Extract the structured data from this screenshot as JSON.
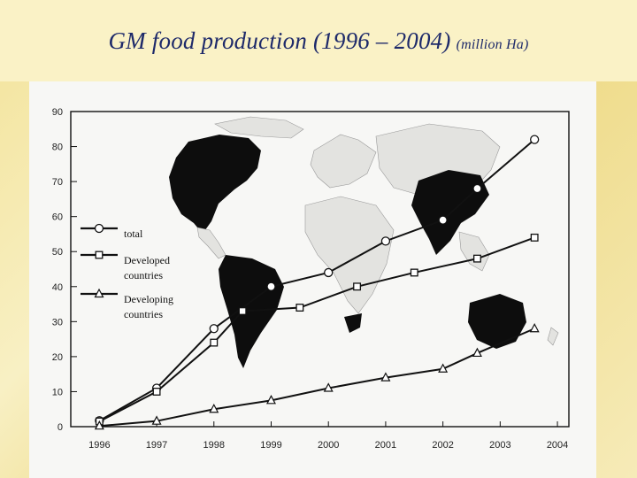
{
  "slide": {
    "title": "GM food production (1996 – 2004)",
    "unit": "(million Ha)"
  },
  "chart_data": {
    "type": "line",
    "x": [
      1996,
      1997,
      1998,
      1999,
      2000,
      2001,
      2002,
      2003,
      2004
    ],
    "x_tick_labels": [
      "1996",
      "1997",
      "1998",
      "1999",
      "2000",
      "2001",
      "2002",
      "2003",
      "2004"
    ],
    "y_tick_labels": [
      "0",
      "10",
      "20",
      "30",
      "40",
      "50",
      "60",
      "70",
      "80",
      "90"
    ],
    "ylim": [
      0,
      90
    ],
    "series": [
      {
        "name": "total",
        "marker": "circle",
        "points": [
          [
            1996.0,
            1.7
          ],
          [
            1997.0,
            11
          ],
          [
            1998.0,
            28
          ],
          [
            1999.0,
            40
          ],
          [
            2000.0,
            44
          ],
          [
            2001.0,
            53
          ],
          [
            2002.0,
            59
          ],
          [
            2002.6,
            68
          ],
          [
            2003.6,
            82
          ]
        ]
      },
      {
        "name": "Developed countries",
        "marker": "square",
        "points": [
          [
            1996.0,
            1.5
          ],
          [
            1997.0,
            10
          ],
          [
            1998.0,
            24
          ],
          [
            1998.5,
            33
          ],
          [
            1999.5,
            34
          ],
          [
            2000.5,
            40
          ],
          [
            2001.5,
            44
          ],
          [
            2002.6,
            48
          ],
          [
            2003.6,
            54
          ]
        ]
      },
      {
        "name": "Developing countries",
        "marker": "triangle",
        "points": [
          [
            1996.0,
            0.2
          ],
          [
            1997.0,
            1.6
          ],
          [
            1998.0,
            5
          ],
          [
            1999.0,
            7.5
          ],
          [
            2000.0,
            11
          ],
          [
            2001.0,
            14
          ],
          [
            2002.0,
            16.5
          ],
          [
            2002.6,
            21
          ],
          [
            2003.6,
            28
          ]
        ]
      }
    ],
    "legend_labels": {
      "total": "total",
      "developed_line1": "Developed",
      "developed_line2": "countries",
      "developing_line1": "Developing",
      "developing_line2": "countries"
    },
    "legend_position": "left",
    "grid": false,
    "background": "world map with GM-growing regions shaded black"
  },
  "colors": {
    "title": "#1e2a6a",
    "ink": "#111111",
    "map_land": "#e3e3e0",
    "map_gm": "#0d0d0d"
  }
}
